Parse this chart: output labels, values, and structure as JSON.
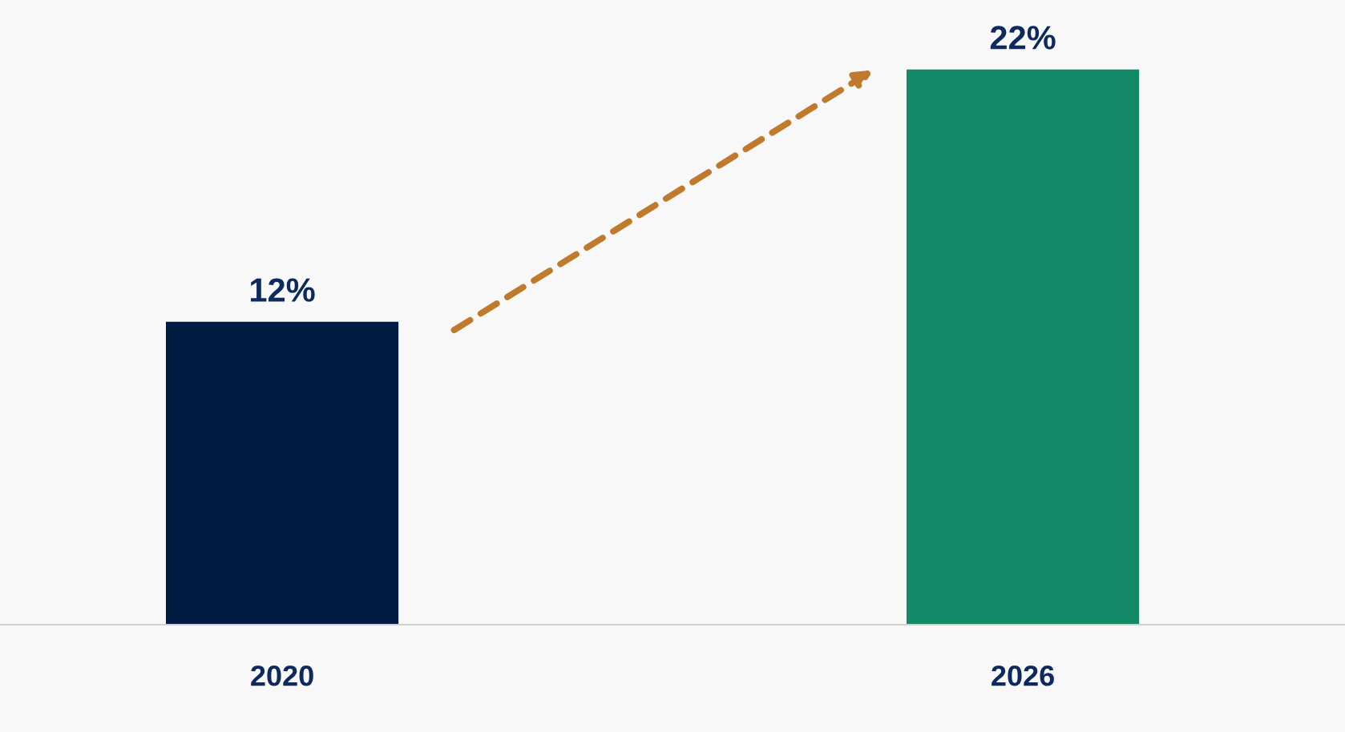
{
  "chart_data": {
    "type": "bar",
    "categories": [
      "2020",
      "2026"
    ],
    "values": [
      12,
      22
    ],
    "colors": [
      "#001c42",
      "#128a68"
    ],
    "value_labels": [
      "12%",
      "22%"
    ]
  }
}
